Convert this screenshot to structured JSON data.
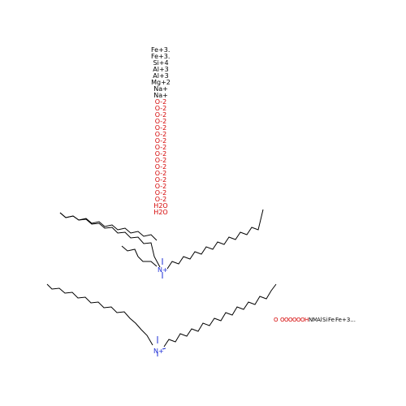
{
  "colors": {
    "black": "#000000",
    "red": "#d40000",
    "nitrogen": "#1a2bd6"
  },
  "ion_column": [
    {
      "text": "Fe+3...",
      "color": "black"
    },
    {
      "text": "Fe+3...",
      "color": "black"
    },
    {
      "text": "Si+4",
      "color": "black"
    },
    {
      "text": "Al+3",
      "color": "black"
    },
    {
      "text": "Al+3",
      "color": "black"
    },
    {
      "text": "Mg+2",
      "color": "black"
    },
    {
      "text": "Na+",
      "color": "black"
    },
    {
      "text": "Na+",
      "color": "black"
    },
    {
      "text": "O-2",
      "color": "red"
    },
    {
      "text": "O-2",
      "color": "red"
    },
    {
      "text": "O-2",
      "color": "red"
    },
    {
      "text": "O-2",
      "color": "red"
    },
    {
      "text": "O-2",
      "color": "red"
    },
    {
      "text": "O-2",
      "color": "red"
    },
    {
      "text": "O-2",
      "color": "red"
    },
    {
      "text": "O-2",
      "color": "red"
    },
    {
      "text": "O-2",
      "color": "red"
    },
    {
      "text": "O-2",
      "color": "red"
    },
    {
      "text": "O-2",
      "color": "red"
    },
    {
      "text": "O-2",
      "color": "red"
    },
    {
      "text": "O-2",
      "color": "red"
    },
    {
      "text": "O-2",
      "color": "red"
    },
    {
      "text": "O-2",
      "color": "red"
    },
    {
      "text": "O-2",
      "color": "red"
    },
    {
      "text": "H2O",
      "color": "red"
    },
    {
      "text": "H2O",
      "color": "red"
    }
  ],
  "ion_row": [
    {
      "text": "O",
      "color": "red"
    },
    {
      "text": "O-2",
      "color": "red"
    },
    {
      "text": "O-2",
      "color": "red"
    },
    {
      "text": "O-2",
      "color": "red"
    },
    {
      "text": "O-2",
      "color": "red"
    },
    {
      "text": "O-2",
      "color": "red"
    },
    {
      "text": "O-2",
      "color": "red"
    },
    {
      "text": "H2O",
      "color": "red"
    },
    {
      "text": "Na+",
      "color": "black"
    },
    {
      "text": "Mg+2",
      "color": "black"
    },
    {
      "text": "Al+3",
      "color": "black"
    },
    {
      "text": "Si+4",
      "color": "black"
    },
    {
      "text": "Fe+3",
      "color": "black"
    },
    {
      "text": "Fe+3...",
      "color": "black"
    }
  ],
  "cation_labels": {
    "top": "N+",
    "bottom": "N+"
  }
}
